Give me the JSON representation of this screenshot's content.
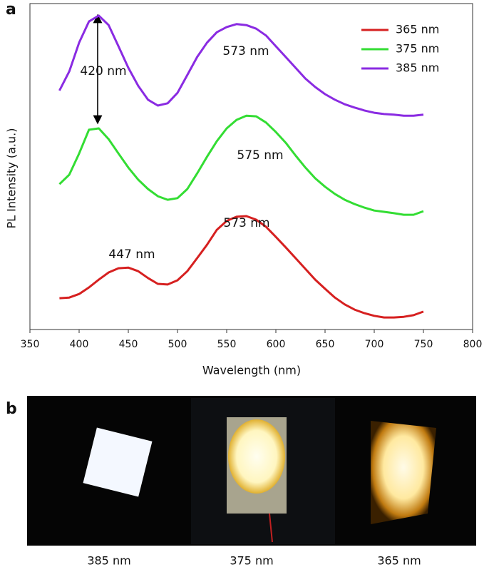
{
  "panel_labels": [
    "a",
    "b"
  ],
  "chart_data": {
    "type": "line",
    "xlabel": "Wavelength (nm)",
    "ylabel": "PL Intensity (a.u.)",
    "xlim": [
      350,
      800
    ],
    "ylim": [
      0,
      100
    ],
    "xticks": [
      350,
      400,
      450,
      500,
      550,
      600,
      650,
      700,
      750,
      800
    ],
    "legend": "upper right",
    "x": [
      380,
      390,
      400,
      410,
      420,
      430,
      440,
      450,
      460,
      470,
      480,
      490,
      500,
      510,
      520,
      530,
      540,
      550,
      560,
      570,
      580,
      590,
      600,
      610,
      620,
      630,
      640,
      650,
      660,
      670,
      680,
      690,
      700,
      710,
      720,
      730,
      740,
      750
    ],
    "series": [
      {
        "name": "365 nm",
        "color": "#d62020",
        "values": [
          9.6,
          9.8,
          10.9,
          12.9,
          15.3,
          17.5,
          18.8,
          19.0,
          17.9,
          15.8,
          14.0,
          13.8,
          15.1,
          17.9,
          21.9,
          26.0,
          30.6,
          33.3,
          34.6,
          34.8,
          33.7,
          31.5,
          28.4,
          25.2,
          21.9,
          18.6,
          15.3,
          12.5,
          9.8,
          7.7,
          6.1,
          5.0,
          4.2,
          3.7,
          3.7,
          3.9,
          4.4,
          5.5
        ]
      },
      {
        "name": "375 nm",
        "color": "#33dd33",
        "values": [
          44.6,
          47.5,
          54.0,
          61.3,
          61.7,
          58.4,
          54.0,
          49.7,
          46.0,
          43.1,
          40.9,
          39.8,
          40.3,
          43.1,
          47.9,
          53.0,
          57.8,
          61.7,
          64.3,
          65.6,
          65.4,
          63.5,
          60.6,
          57.3,
          53.4,
          49.7,
          46.4,
          43.8,
          41.6,
          39.8,
          38.5,
          37.4,
          36.5,
          36.1,
          35.7,
          35.2,
          35.2,
          36.3
        ]
      },
      {
        "name": "385 nm",
        "color": "#8a2be2",
        "values": [
          73.3,
          79.2,
          88.0,
          94.5,
          96.3,
          93.4,
          86.9,
          80.3,
          74.8,
          70.5,
          68.7,
          69.4,
          72.6,
          78.1,
          83.6,
          88.0,
          91.2,
          92.8,
          93.7,
          93.4,
          92.3,
          90.2,
          86.9,
          83.6,
          80.3,
          77.0,
          74.4,
          72.2,
          70.5,
          69.1,
          68.1,
          67.2,
          66.5,
          66.1,
          65.9,
          65.6,
          65.6,
          65.9
        ]
      }
    ],
    "annotations": [
      "420 nm",
      "573 nm",
      "575 nm",
      "447 nm",
      "573 nm"
    ]
  },
  "photos": {
    "captions": [
      "385 nm",
      "375 nm",
      "365 nm"
    ]
  }
}
